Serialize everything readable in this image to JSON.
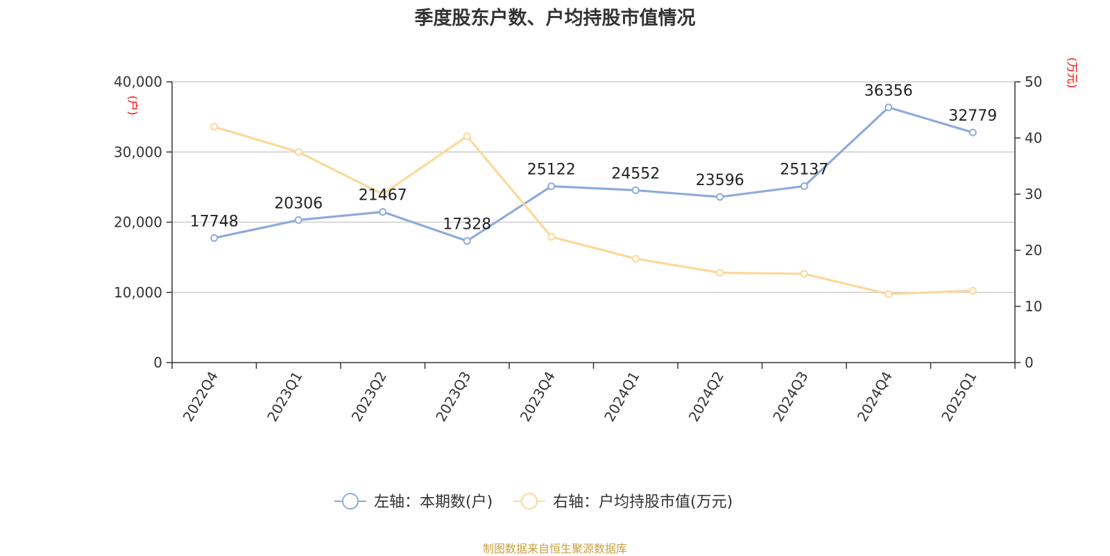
{
  "source_note": "制图数据来自恒生聚源数据库",
  "chart_data": {
    "type": "line",
    "title": "季度股东户数、户均持股市值情况",
    "categories": [
      "2022Q4",
      "2023Q1",
      "2023Q2",
      "2023Q3",
      "2023Q4",
      "2024Q1",
      "2024Q2",
      "2024Q3",
      "2024Q4",
      "2025Q1"
    ],
    "left_axis": {
      "unit": "(户)",
      "range": [
        0,
        40000
      ],
      "ticks": [
        0,
        10000,
        20000,
        30000,
        40000
      ],
      "tick_labels": [
        "0",
        "10,000",
        "20,000",
        "30,000",
        "40,000"
      ]
    },
    "right_axis": {
      "unit": "(万元)",
      "range": [
        0,
        50
      ],
      "ticks": [
        0,
        10,
        20,
        30,
        40,
        50
      ],
      "tick_labels": [
        "0",
        "10",
        "20",
        "30",
        "40",
        "50"
      ]
    },
    "grid": true,
    "legend_position": "bottom",
    "series": [
      {
        "name": "左轴：本期数(户)",
        "axis": "left",
        "color": "#8eaadb",
        "show_labels": true,
        "values": [
          17748,
          20306,
          21467,
          17328,
          25122,
          24552,
          23596,
          25137,
          36356,
          32779
        ]
      },
      {
        "name": "右轴：户均持股市值(万元)",
        "axis": "right",
        "color": "#fcd898",
        "show_labels": false,
        "values": [
          42.0,
          37.5,
          30.0,
          40.3,
          22.4,
          18.5,
          16.0,
          15.8,
          12.2,
          12.8
        ]
      }
    ],
    "unit_color": "#ff0000"
  }
}
